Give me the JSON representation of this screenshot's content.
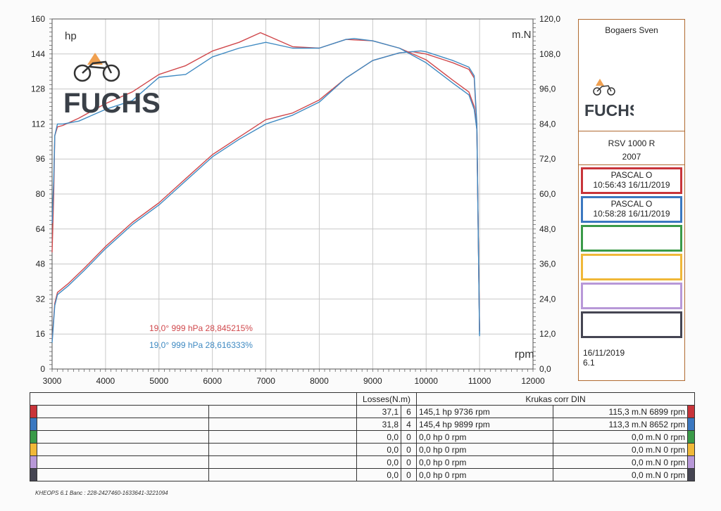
{
  "chart_data": {
    "type": "line",
    "xlabel": "rpm",
    "ylabel_left": "hp",
    "ylabel_right": "m.N",
    "xlim": [
      3000,
      12000
    ],
    "ylim_left": [
      0,
      160
    ],
    "ylim_right": [
      0,
      120
    ],
    "x_ticks": [
      "3000",
      "4000",
      "5000",
      "6000",
      "7000",
      "8000",
      "9000",
      "10000",
      "11000",
      "12000"
    ],
    "y_ticks_left": [
      "0",
      "16",
      "32",
      "48",
      "64",
      "80",
      "96",
      "112",
      "128",
      "144",
      "160"
    ],
    "y_ticks_right": [
      "0,0",
      "12,0",
      "24,0",
      "36,0",
      "48,0",
      "60,0",
      "72,0",
      "84,0",
      "96,0",
      "108,0",
      "120,0"
    ],
    "grid": true,
    "series": [
      {
        "name": "PASCAL O 10:56:43 16/11/2019",
        "quantity": "power",
        "axis": "left",
        "color": "#d0484c",
        "x": [
          3000,
          3050,
          3100,
          3300,
          3600,
          4000,
          4500,
          5000,
          5500,
          6000,
          6500,
          7000,
          7500,
          8000,
          8500,
          9000,
          9500,
          9736,
          10000,
          10500,
          10800,
          10900,
          10950,
          11000
        ],
        "y": [
          13,
          30,
          35,
          39,
          46,
          56,
          67,
          76,
          87,
          98,
          106,
          114,
          117,
          123,
          133,
          141,
          144.5,
          145.1,
          144,
          140,
          137,
          133,
          110,
          17
        ]
      },
      {
        "name": "PASCAL O 10:58:28 16/11/2019",
        "quantity": "power",
        "axis": "left",
        "color": "#3f8ac2",
        "x": [
          3000,
          3050,
          3100,
          3300,
          3600,
          4000,
          4500,
          5000,
          5500,
          6000,
          6500,
          7000,
          7500,
          8000,
          8500,
          9000,
          9500,
          9899,
          10000,
          10500,
          10800,
          10900,
          10950,
          11000
        ],
        "y": [
          12,
          29,
          34,
          38,
          45,
          55,
          66,
          75,
          86,
          97,
          105,
          112,
          116,
          122,
          133,
          141,
          144.5,
          145.4,
          145,
          141,
          138,
          134,
          112,
          15
        ]
      },
      {
        "name": "PASCAL O 10:56:43 16/11/2019",
        "quantity": "torque",
        "axis": "right",
        "color": "#d0484c",
        "x": [
          3000,
          3030,
          3050,
          3100,
          3200,
          3500,
          4000,
          4500,
          5000,
          5500,
          6000,
          6500,
          6899,
          7000,
          7500,
          8000,
          8500,
          9000,
          9500,
          10000,
          10500,
          10800,
          10900,
          10950,
          11000
        ],
        "y": [
          40,
          60,
          80,
          83,
          83.5,
          86,
          91,
          95,
          101,
          104,
          109,
          112,
          115.3,
          114.5,
          110.5,
          110,
          113,
          112.5,
          110,
          106,
          99,
          95,
          90,
          82,
          13
        ]
      },
      {
        "name": "PASCAL O 10:58:28 16/11/2019",
        "quantity": "torque",
        "axis": "right",
        "color": "#3f8ac2",
        "x": [
          3000,
          3030,
          3050,
          3100,
          3200,
          3500,
          4000,
          4500,
          5000,
          5500,
          6000,
          6500,
          7000,
          7500,
          8000,
          8500,
          8652,
          9000,
          9500,
          10000,
          10500,
          10800,
          10900,
          10950,
          11000
        ],
        "y": [
          50,
          65,
          80,
          84,
          84,
          85,
          89,
          92,
          100,
          101,
          107,
          110,
          112,
          110,
          110,
          113,
          113.3,
          112.5,
          110,
          105,
          98,
          94,
          89,
          82,
          12
        ]
      }
    ],
    "annotations": [
      {
        "text": "19,0°  999 hPa  28,845215%",
        "color": "#d0484c"
      },
      {
        "text": "19,0°  999 hPa  28,616333%",
        "color": "#3f8ac2"
      }
    ]
  },
  "logo": {
    "text": "FUCHS"
  },
  "panel": {
    "owner": "Bogaers Sven",
    "bike_model": "RSV 1000 R",
    "bike_year": "2007",
    "runs": [
      {
        "name": "PASCAL O",
        "time": "10:56:43  16/11/2019",
        "color": "#c8343a"
      },
      {
        "name": "PASCAL O",
        "time": "10:58:28  16/11/2019",
        "color": "#3b78c0"
      },
      {
        "name": "",
        "time": "",
        "color": "#3a9a48"
      },
      {
        "name": "",
        "time": "",
        "color": "#f0b838"
      },
      {
        "name": "",
        "time": "",
        "color": "#b898d8"
      },
      {
        "name": "",
        "time": "",
        "color": "#454552"
      }
    ],
    "date": "16/11/2019",
    "version": "6.1"
  },
  "table": {
    "losses_header": "Losses(N.m)",
    "right_header": "Krukas corr DIN",
    "rows": [
      {
        "loss": "37,1",
        "n": "6",
        "power": "145,1 hp 9736 rpm",
        "torque": "115,3 m.N 6899 rpm",
        "color": "#c8343a"
      },
      {
        "loss": "31,8",
        "n": "4",
        "power": "145,4 hp 9899 rpm",
        "torque": "113,3 m.N 8652 rpm",
        "color": "#3b78c0"
      },
      {
        "loss": "0,0",
        "n": "0",
        "power": "0,0 hp 0 rpm",
        "torque": "0,0 m.N 0 rpm",
        "color": "#3a9a48"
      },
      {
        "loss": "0,0",
        "n": "0",
        "power": "0,0 hp 0 rpm",
        "torque": "0,0 m.N 0 rpm",
        "color": "#f0b838"
      },
      {
        "loss": "0,0",
        "n": "0",
        "power": "0,0 hp 0 rpm",
        "torque": "0,0 m.N 0 rpm",
        "color": "#b898d8"
      },
      {
        "loss": "0,0",
        "n": "0",
        "power": "0,0 hp 0 rpm",
        "torque": "0,0 m.N 0 rpm",
        "color": "#454552"
      }
    ]
  },
  "footer": "KHEOPS 6.1  Banc : 228-2427460-1633641-3221094"
}
